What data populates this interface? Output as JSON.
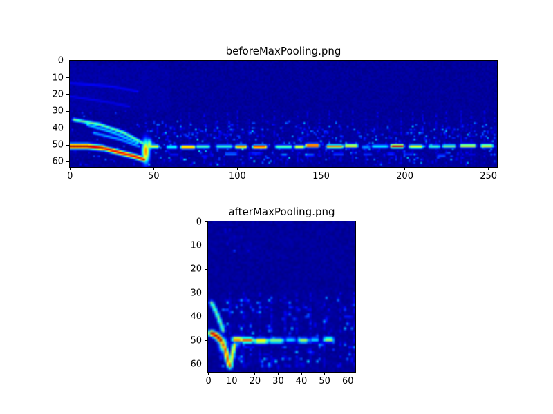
{
  "figure": {
    "background": "#ffffff",
    "frame_color": "#000000"
  },
  "chart_data": [
    {
      "name": "before",
      "type": "heatmap",
      "title": "beforeMaxPooling.png",
      "colormap": "jet",
      "background_color": "#000080",
      "xlabel": "",
      "ylabel": "",
      "xlim": [
        0,
        255
      ],
      "ylim": [
        63,
        0
      ],
      "x_ticks": [
        0,
        50,
        100,
        150,
        200,
        250
      ],
      "y_ticks": [
        0,
        10,
        20,
        30,
        40,
        50,
        60
      ],
      "grid": {
        "cols": 256,
        "rows": 64,
        "seed": 42
      },
      "features": [
        {
          "kind": "noise",
          "region": [
            0,
            0,
            256,
            64
          ],
          "base": 0.01,
          "amp": 0.035
        },
        {
          "kind": "noise",
          "region": [
            0,
            2,
            60,
            30
          ],
          "base": 0.015,
          "amp": 0.04
        },
        {
          "kind": "vstreaks",
          "region": [
            50,
            30,
            256,
            62
          ],
          "spacing": 7,
          "intensity": 0.1
        },
        {
          "kind": "polyline",
          "points": [
            [
              0,
              13
            ],
            [
              25,
              15
            ],
            [
              40,
              18
            ]
          ],
          "intensity": 0.13,
          "thickness": 0.8
        },
        {
          "kind": "polyline",
          "points": [
            [
              0,
              21
            ],
            [
              20,
              24
            ],
            [
              35,
              27
            ]
          ],
          "intensity": 0.11,
          "thickness": 0.8
        },
        {
          "kind": "polyline",
          "points": [
            [
              2,
              35
            ],
            [
              18,
              38
            ],
            [
              32,
              43
            ],
            [
              43,
              49
            ]
          ],
          "intensity": 0.5,
          "thickness": 0.9
        },
        {
          "kind": "polyline",
          "points": [
            [
              10,
              38
            ],
            [
              26,
              43
            ],
            [
              40,
              49
            ]
          ],
          "intensity": 0.35,
          "thickness": 0.8
        },
        {
          "kind": "polyline",
          "points": [
            [
              14,
              43
            ],
            [
              30,
              47
            ],
            [
              41,
              51
            ]
          ],
          "intensity": 0.3,
          "thickness": 0.8
        },
        {
          "kind": "polyline",
          "points": [
            [
              0,
              51
            ],
            [
              10,
              51
            ],
            [
              19,
              52
            ]
          ],
          "intensity": 0.97,
          "thickness": 1.4
        },
        {
          "kind": "polyline",
          "points": [
            [
              19,
              52
            ],
            [
              30,
              55
            ],
            [
              38,
              57
            ],
            [
              44,
              59
            ]
          ],
          "intensity": 0.9,
          "thickness": 1.2
        },
        {
          "kind": "blob",
          "c": 45,
          "r": 54,
          "rx": 1.6,
          "ry": 5,
          "intensity": 0.75
        },
        {
          "kind": "blob",
          "c": 47,
          "r": 50,
          "rx": 1.2,
          "ry": 2.5,
          "intensity": 0.6
        },
        {
          "kind": "dashline",
          "row": 51,
          "c0": 48,
          "c1": 255,
          "imin": 0.3,
          "imax": 0.97,
          "dash": [
            3,
            9
          ],
          "gap": [
            2,
            7
          ],
          "thickness": 1.0,
          "jitter": 0.6
        },
        {
          "kind": "dashline",
          "row": 56,
          "c0": 60,
          "c1": 250,
          "imin": 0.1,
          "imax": 0.3,
          "dash": [
            2,
            6
          ],
          "gap": [
            6,
            16
          ],
          "thickness": 0.7,
          "jitter": 0.8
        },
        {
          "kind": "speckle",
          "region": [
            46,
            36,
            256,
            62
          ],
          "count": 380,
          "imin": 0.08,
          "imax": 0.4
        },
        {
          "kind": "speckle",
          "region": [
            46,
            40,
            256,
            47
          ],
          "count": 120,
          "imin": 0.08,
          "imax": 0.3
        },
        {
          "kind": "speckle",
          "region": [
            0,
            30,
            46,
            62
          ],
          "count": 60,
          "imin": 0.06,
          "imax": 0.25
        }
      ]
    },
    {
      "name": "after",
      "type": "heatmap",
      "title": "afterMaxPooling.png",
      "colormap": "jet",
      "background_color": "#000080",
      "xlabel": "",
      "ylabel": "",
      "xlim": [
        0,
        63
      ],
      "ylim": [
        63,
        0
      ],
      "x_ticks": [
        0,
        10,
        20,
        30,
        40,
        50,
        60
      ],
      "y_ticks": [
        0,
        10,
        20,
        30,
        40,
        50,
        60
      ],
      "grid": {
        "cols": 64,
        "rows": 64,
        "seed": 7
      },
      "features": [
        {
          "kind": "noise",
          "region": [
            0,
            0,
            64,
            64
          ],
          "base": 0.01,
          "amp": 0.035
        },
        {
          "kind": "speckle",
          "region": [
            4,
            3,
            20,
            12
          ],
          "count": 15,
          "imin": 0.05,
          "imax": 0.18
        },
        {
          "kind": "vstreaks",
          "region": [
            8,
            30,
            64,
            62
          ],
          "spacing": 6,
          "intensity": 0.1
        },
        {
          "kind": "polyline",
          "points": [
            [
              1,
              34
            ],
            [
              3,
              38
            ],
            [
              5,
              43
            ],
            [
              6,
              46
            ]
          ],
          "intensity": 0.5,
          "thickness": 0.8
        },
        {
          "kind": "polyline",
          "points": [
            [
              1,
              47
            ],
            [
              3,
              48
            ],
            [
              5,
              50
            ]
          ],
          "intensity": 0.95,
          "thickness": 1.1
        },
        {
          "kind": "polyline",
          "points": [
            [
              5,
              50
            ],
            [
              7,
              54
            ],
            [
              8,
              58
            ],
            [
              9,
              61
            ]
          ],
          "intensity": 0.8,
          "thickness": 1.0
        },
        {
          "kind": "polyline",
          "points": [
            [
              9,
              61
            ],
            [
              10,
              56
            ],
            [
              11,
              52
            ]
          ],
          "intensity": 0.65,
          "thickness": 0.9
        },
        {
          "kind": "blob",
          "c": 6,
          "r": 52,
          "rx": 1.2,
          "ry": 2,
          "intensity": 0.7
        },
        {
          "kind": "dashline",
          "row": 50,
          "c0": 11,
          "c1": 34,
          "imin": 0.45,
          "imax": 0.85,
          "dash": [
            2,
            5
          ],
          "gap": [
            1,
            3
          ],
          "thickness": 1.0,
          "jitter": 0.5
        },
        {
          "kind": "dashline",
          "row": 50,
          "c0": 34,
          "c1": 56,
          "imin": 0.3,
          "imax": 0.6,
          "dash": [
            2,
            4
          ],
          "gap": [
            2,
            4
          ],
          "thickness": 0.9,
          "jitter": 0.5
        },
        {
          "kind": "speckle",
          "region": [
            2,
            32,
            64,
            62
          ],
          "count": 150,
          "imin": 0.08,
          "imax": 0.4
        },
        {
          "kind": "speckle",
          "region": [
            10,
            56,
            40,
            62
          ],
          "count": 40,
          "imin": 0.08,
          "imax": 0.3
        }
      ]
    }
  ]
}
